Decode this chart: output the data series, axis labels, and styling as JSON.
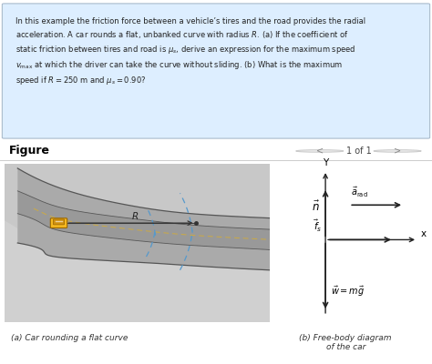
{
  "bg_color": "#ffffff",
  "text_color": "#222222",
  "title_text": "Figure",
  "nav_text": "1 of 1",
  "caption_a": "(a) Car rounding a flat curve",
  "caption_b": "(b) Free-body diagram\nof the car",
  "problem_text": "In this example the friction force between a vehicle’s tires and the road provides the radial acceleration. A car rounds a flat, unbanked curve with radius $R$. (a) If the coefficient of static friction between tires and road is $\\mu_s$, derive an expression for the maximum speed $v_{\\mathrm{max}}$ at which the driver can take the curve without sliding. (b) What is the maximum speed if $R = 250$ m and $\\mu_s = 0.90$?",
  "road_gray": "#888888",
  "road_light": "#aaaaaa",
  "terrain_gray": "#c8c8c8",
  "terrain_light": "#d8d8d8",
  "car_body": "#f5b820",
  "car_roof": "#d09010",
  "car_edge": "#996600",
  "dash_blue": "#5599cc",
  "dash_yellow": "#ccaa44",
  "arrow_color": "#222222",
  "panel_bg": "#ddeeff",
  "panel_border": "#aabbcc",
  "radius_label": "R"
}
